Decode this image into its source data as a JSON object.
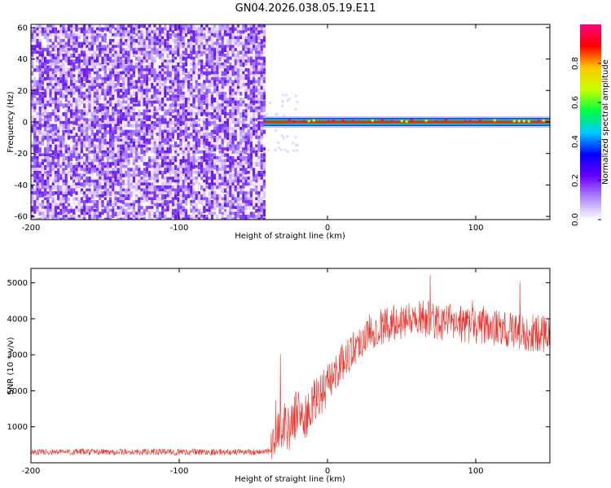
{
  "title": "GN04.2026.038.05.19.E11",
  "chart_data": [
    {
      "type": "heatmap",
      "name": "spectrogram",
      "xlabel": "Height of straight line (km)",
      "ylabel": "Frequency (Hz)",
      "xlim": [
        -200,
        150
      ],
      "ylim": [
        -62,
        62
      ],
      "x_ticks": [
        -200,
        -100,
        0,
        100
      ],
      "y_ticks": [
        -60,
        -40,
        -20,
        0,
        20,
        40,
        60
      ],
      "noise_region_x": [
        -200,
        -43
      ],
      "signal_band_x": [
        -43,
        150
      ],
      "signal_freq_hz": 0,
      "colorbar": {
        "label": "Normalized spectral amplitude",
        "range": [
          0,
          1
        ],
        "ticks": [
          "0.0",
          "0.2",
          "0.4",
          "0.6",
          "0.8"
        ],
        "tick_values": [
          0.0,
          0.2,
          0.4,
          0.6,
          0.8
        ],
        "colors": [
          "#ffffff",
          "#b088ff",
          "#6a00ff",
          "#0000ff",
          "#00c8ff",
          "#00ff40",
          "#c8ff00",
          "#ffc800",
          "#ff0000",
          "#ff0080"
        ]
      }
    },
    {
      "type": "line",
      "name": "snr",
      "xlabel": "Height of straight line (km)",
      "ylabel": "SNR (10 * v/v)",
      "xlim": [
        -200,
        150
      ],
      "ylim": [
        0,
        5400
      ],
      "x_ticks": [
        -200,
        -100,
        0,
        100
      ],
      "y_ticks": [
        1000,
        2000,
        3000,
        4000,
        5000
      ],
      "color": "#e8352e",
      "trend": {
        "x": [
          -200,
          -150,
          -100,
          -50,
          -38,
          -34,
          -30,
          -25,
          -20,
          -15,
          -10,
          -5,
          0,
          10,
          20,
          30,
          40,
          50,
          60,
          70,
          80,
          90,
          100,
          110,
          120,
          130,
          140,
          150
        ],
        "y": [
          300,
          300,
          300,
          300,
          310,
          650,
          1100,
          950,
          1500,
          1200,
          1600,
          1900,
          2200,
          2800,
          3300,
          3700,
          3850,
          3950,
          4050,
          3950,
          3900,
          3850,
          3800,
          3750,
          3700,
          3650,
          3600,
          3550
        ]
      }
    }
  ]
}
